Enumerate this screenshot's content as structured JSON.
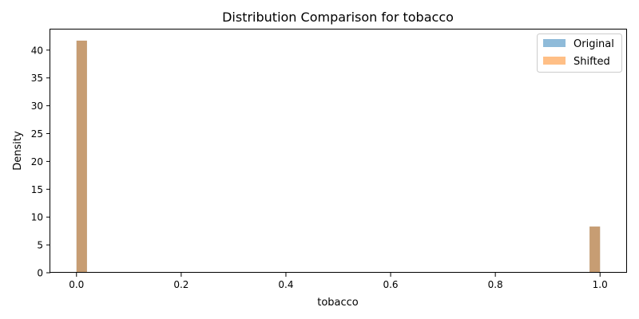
{
  "chart_data": {
    "type": "bar",
    "title": "Distribution Comparison for tobacco",
    "xlabel": "tobacco",
    "ylabel": "Density",
    "xlim": [
      -0.05,
      1.05
    ],
    "ylim": [
      0,
      43.7
    ],
    "x_ticks": [
      0.0,
      0.2,
      0.4,
      0.6,
      0.8,
      1.0
    ],
    "y_ticks": [
      0,
      5,
      10,
      15,
      20,
      25,
      30,
      35,
      40
    ],
    "x_tick_labels": [
      "0.0",
      "0.2",
      "0.4",
      "0.6",
      "0.8",
      "1.0"
    ],
    "y_tick_labels": [
      "0",
      "5",
      "10",
      "15",
      "20",
      "25",
      "30",
      "35",
      "40"
    ],
    "bin_width": 0.02,
    "grid": false,
    "legend_position": "top-right",
    "series": [
      {
        "name": "Original",
        "color": "#1f77b4",
        "opacity": 0.5,
        "bins": [
          {
            "x_start": 0.0,
            "x_end": 0.02,
            "density": 41.7
          },
          {
            "x_start": 0.98,
            "x_end": 1.0,
            "density": 8.3
          }
        ]
      },
      {
        "name": "Shifted",
        "color": "#ff7f0e",
        "opacity": 0.5,
        "bins": [
          {
            "x_start": 0.0,
            "x_end": 0.02,
            "density": 41.7
          },
          {
            "x_start": 0.98,
            "x_end": 1.0,
            "density": 8.3
          }
        ]
      }
    ]
  }
}
